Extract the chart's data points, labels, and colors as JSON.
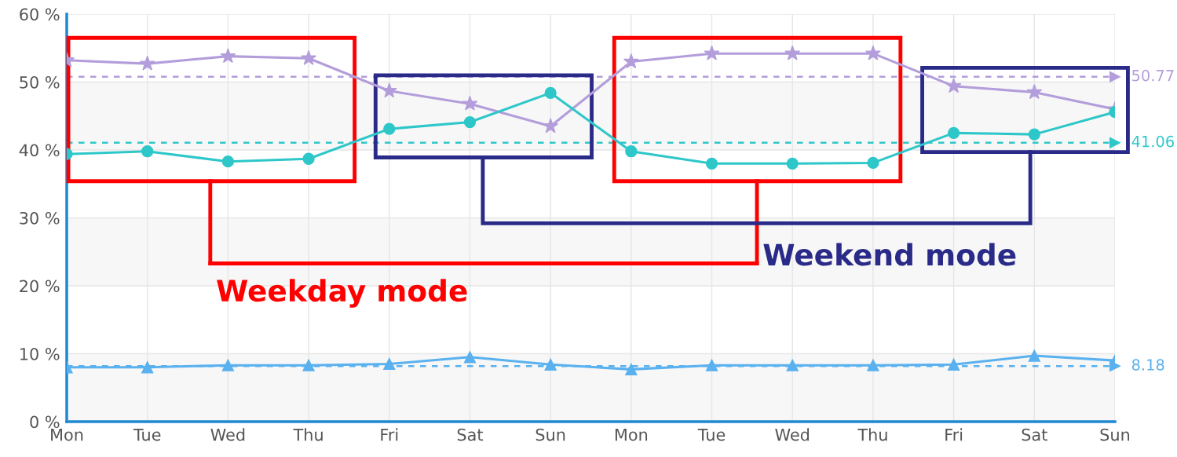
{
  "chart_data": {
    "type": "line",
    "categories": [
      "Mon",
      "Tue",
      "Wed",
      "Thu",
      "Fri",
      "Sat",
      "Sun",
      "Mon",
      "Tue",
      "Wed",
      "Thu",
      "Fri",
      "Sat",
      "Sun"
    ],
    "series": [
      {
        "color": "#b39ddb",
        "marker": "star",
        "values": [
          53.2,
          52.7,
          53.8,
          53.5,
          48.7,
          46.8,
          43.5,
          53.0,
          54.2,
          54.2,
          54.2,
          49.4,
          48.5,
          46.0
        ]
      },
      {
        "color": "#2ec7c9",
        "marker": "circle",
        "values": [
          39.4,
          39.8,
          38.3,
          38.7,
          43.1,
          44.1,
          48.4,
          39.8,
          38.0,
          38.0,
          38.1,
          42.5,
          42.3,
          45.6
        ]
      },
      {
        "color": "#5ab1ef",
        "marker": "triangle",
        "values": [
          8.0,
          8.0,
          8.3,
          8.3,
          8.5,
          9.5,
          8.4,
          7.7,
          8.3,
          8.3,
          8.3,
          8.4,
          9.7,
          9.0
        ]
      }
    ],
    "ylim": [
      0,
      60
    ],
    "yticks": [
      {
        "value": 0,
        "label": "0 %"
      },
      {
        "value": 10,
        "label": "10 %"
      },
      {
        "value": 20,
        "label": "20 %"
      },
      {
        "value": 30,
        "label": "30 %"
      },
      {
        "value": 40,
        "label": "40 %"
      },
      {
        "value": 50,
        "label": "50 %"
      },
      {
        "value": 60,
        "label": "60 %"
      }
    ],
    "grid": true,
    "line_style": "solid",
    "ref_lines": [
      {
        "axis": "y",
        "value": 50.77,
        "label": "50.77",
        "color": "#b39ddb",
        "line_style": "dashed"
      },
      {
        "axis": "y",
        "value": 41.06,
        "label": "41.06",
        "color": "#2ec7c9",
        "line_style": "dashed"
      },
      {
        "axis": "y",
        "value": 8.18,
        "label": "8.18",
        "color": "#5ab1ef",
        "line_style": "dashed"
      }
    ],
    "bands": [
      {
        "axis": "y",
        "from": 0,
        "to": 10,
        "color": "#f7f7f7"
      },
      {
        "axis": "y",
        "from": 20,
        "to": 30,
        "color": "#f7f7f7"
      },
      {
        "axis": "y",
        "from": 40,
        "to": 50,
        "color": "#f7f7f7"
      }
    ],
    "annotations": [
      "Weekday mode",
      "Weekend mode"
    ]
  }
}
